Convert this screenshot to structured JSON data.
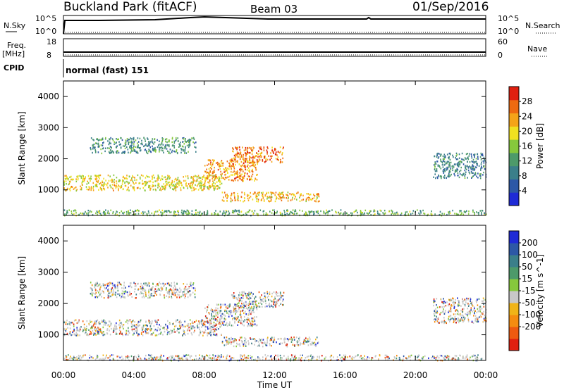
{
  "header": {
    "site": "Buckland Park (fitACF)",
    "beam": "Beam 03",
    "date": "01/Sep/2016"
  },
  "top_panels": {
    "nsky_label": "N.Sky",
    "nsky_top": "10^5",
    "nsky_bottom": "10^0",
    "nsearch_label": "N.Search",
    "nsearch_top": "10^5",
    "nsearch_bottom": "10^0",
    "freq_label": "Freq.",
    "freq_unit": "[MHz]",
    "freq_top": "18",
    "freq_bottom": "8",
    "nave_label": "Nave",
    "nave_top": "60",
    "nave_bottom": "0",
    "cpid_label": "CPID",
    "cpid_value": "normal (fast) 151"
  },
  "colors": {
    "power": [
      "#1f2bd6",
      "#2d58a6",
      "#3b7f8a",
      "#4d9a6a",
      "#86c83c",
      "#f0e020",
      "#f5a418",
      "#ee6a10",
      "#e02010"
    ],
    "velocity": [
      "#1f2bd6",
      "#2d58a6",
      "#3b7f8a",
      "#4d9a6a",
      "#86c83c",
      "#c8c8c8",
      "#f0b418",
      "#f58c10",
      "#ee5a10",
      "#e02010"
    ]
  },
  "chart_data": [
    {
      "type": "heatmap",
      "title": "",
      "xlabel": "Time UT",
      "ylabel": "Slant Range [km]",
      "x_ticks": [
        "00:00",
        "04:00",
        "08:00",
        "12:00",
        "16:00",
        "20:00",
        "00:00"
      ],
      "x_range_hours": [
        0,
        24
      ],
      "y_ticks": [
        1000,
        2000,
        3000,
        4000
      ],
      "ylim": [
        180,
        4500
      ],
      "colorbar": {
        "label": "Power [dB]",
        "ticks": [
          4,
          8,
          12,
          16,
          20,
          24,
          28
        ],
        "range": [
          0,
          32
        ]
      },
      "echo_regions": [
        {
          "t_start": 0.0,
          "t_end": 9.0,
          "range_min": 1000,
          "range_max": 1500,
          "value": 18
        },
        {
          "t_start": 8.0,
          "t_end": 11.0,
          "range_min": 1300,
          "range_max": 2000,
          "value": 22
        },
        {
          "t_start": 9.5,
          "t_end": 12.5,
          "range_min": 1900,
          "range_max": 2400,
          "value": 24
        },
        {
          "t_start": 1.5,
          "t_end": 7.5,
          "range_min": 2200,
          "range_max": 2700,
          "value": 9
        },
        {
          "t_start": 9.0,
          "t_end": 14.5,
          "range_min": 650,
          "range_max": 950,
          "value": 20
        },
        {
          "t_start": 0.0,
          "t_end": 24.0,
          "range_min": 200,
          "range_max": 380,
          "value": 12
        },
        {
          "t_start": 21.0,
          "t_end": 24.0,
          "range_min": 1400,
          "range_max": 2200,
          "value": 8
        }
      ]
    },
    {
      "type": "heatmap",
      "title": "",
      "xlabel": "Time UT",
      "ylabel": "Slant Range [km]",
      "x_ticks": [
        "00:00",
        "04:00",
        "08:00",
        "12:00",
        "16:00",
        "20:00",
        "00:00"
      ],
      "x_range_hours": [
        0,
        24
      ],
      "y_ticks": [
        1000,
        2000,
        3000,
        4000
      ],
      "ylim": [
        180,
        4500
      ],
      "colorbar": {
        "label": "Velocity [m s^-1]",
        "ticks": [
          200,
          100,
          50,
          15,
          -15,
          -50,
          -100,
          -200
        ]
      },
      "echo_regions": [
        {
          "t_start": 0.0,
          "t_end": 9.0,
          "range_min": 1000,
          "range_max": 1500,
          "value": 0
        },
        {
          "t_start": 8.0,
          "t_end": 11.0,
          "range_min": 1300,
          "range_max": 2000,
          "value": -40
        },
        {
          "t_start": 9.5,
          "t_end": 12.5,
          "range_min": 1900,
          "range_max": 2400,
          "value": 10
        },
        {
          "t_start": 1.5,
          "t_end": 7.5,
          "range_min": 2200,
          "range_max": 2700,
          "value": -30
        },
        {
          "t_start": 9.0,
          "t_end": 14.5,
          "range_min": 650,
          "range_max": 950,
          "value": 40
        },
        {
          "t_start": 0.0,
          "t_end": 24.0,
          "range_min": 200,
          "range_max": 380,
          "value": 30
        },
        {
          "t_start": 21.0,
          "t_end": 24.0,
          "range_min": 1400,
          "range_max": 2200,
          "value": 0
        }
      ]
    }
  ]
}
